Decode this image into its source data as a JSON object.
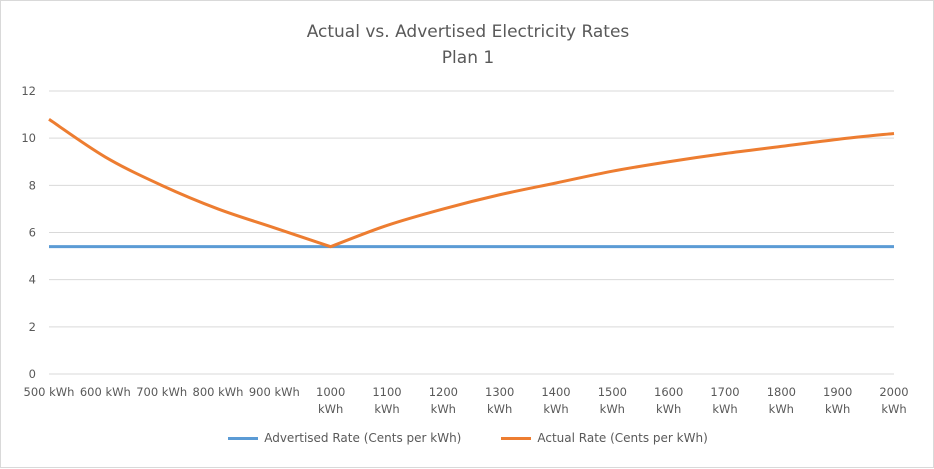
{
  "chart_data": {
    "type": "line",
    "title": "Actual vs. Advertised  Electricity Rates",
    "subtitle": "Plan 1",
    "xlabel": "",
    "ylabel": "",
    "ylim": [
      0,
      12
    ],
    "yticks": [
      "0",
      "2",
      "4",
      "6",
      "8",
      "10",
      "12"
    ],
    "grid": true,
    "legend_position": "bottom",
    "categories": [
      "500 kWh",
      "600 kWh",
      "700 kWh",
      "800 kWh",
      "900 kWh",
      "1000 kWh",
      "1100 kWh",
      "1200 kWh",
      "1300 kWh",
      "1400 kWh",
      "1500 kWh",
      "1600 kWh",
      "1700 kWh",
      "1800 kWh",
      "1900 kWh",
      "2000 kWh"
    ],
    "category_labels": [
      [
        "500 kWh"
      ],
      [
        "600 kWh"
      ],
      [
        "700 kWh"
      ],
      [
        "800 kWh"
      ],
      [
        "900 kWh"
      ],
      [
        "1000",
        "kWh"
      ],
      [
        "1100",
        "kWh"
      ],
      [
        "1200",
        "kWh"
      ],
      [
        "1300",
        "kWh"
      ],
      [
        "1400",
        "kWh"
      ],
      [
        "1500",
        "kWh"
      ],
      [
        "1600",
        "kWh"
      ],
      [
        "1700",
        "kWh"
      ],
      [
        "1800",
        "kWh"
      ],
      [
        "1900",
        "kWh"
      ],
      [
        "2000",
        "kWh"
      ]
    ],
    "series": [
      {
        "name": "Advertised Rate (Cents per kWh)",
        "color": "#5b9bd5",
        "values": [
          5.4,
          5.4,
          5.4,
          5.4,
          5.4,
          5.4,
          5.4,
          5.4,
          5.4,
          5.4,
          5.4,
          5.4,
          5.4,
          5.4,
          5.4,
          5.4
        ]
      },
      {
        "name": "Actual Rate  (Cents per kWh)",
        "color": "#ed7d31",
        "values": [
          10.8,
          9.2,
          8.0,
          7.0,
          6.2,
          5.4,
          6.3,
          7.0,
          7.6,
          8.1,
          8.6,
          9.0,
          9.35,
          9.65,
          9.95,
          10.2
        ]
      }
    ]
  }
}
